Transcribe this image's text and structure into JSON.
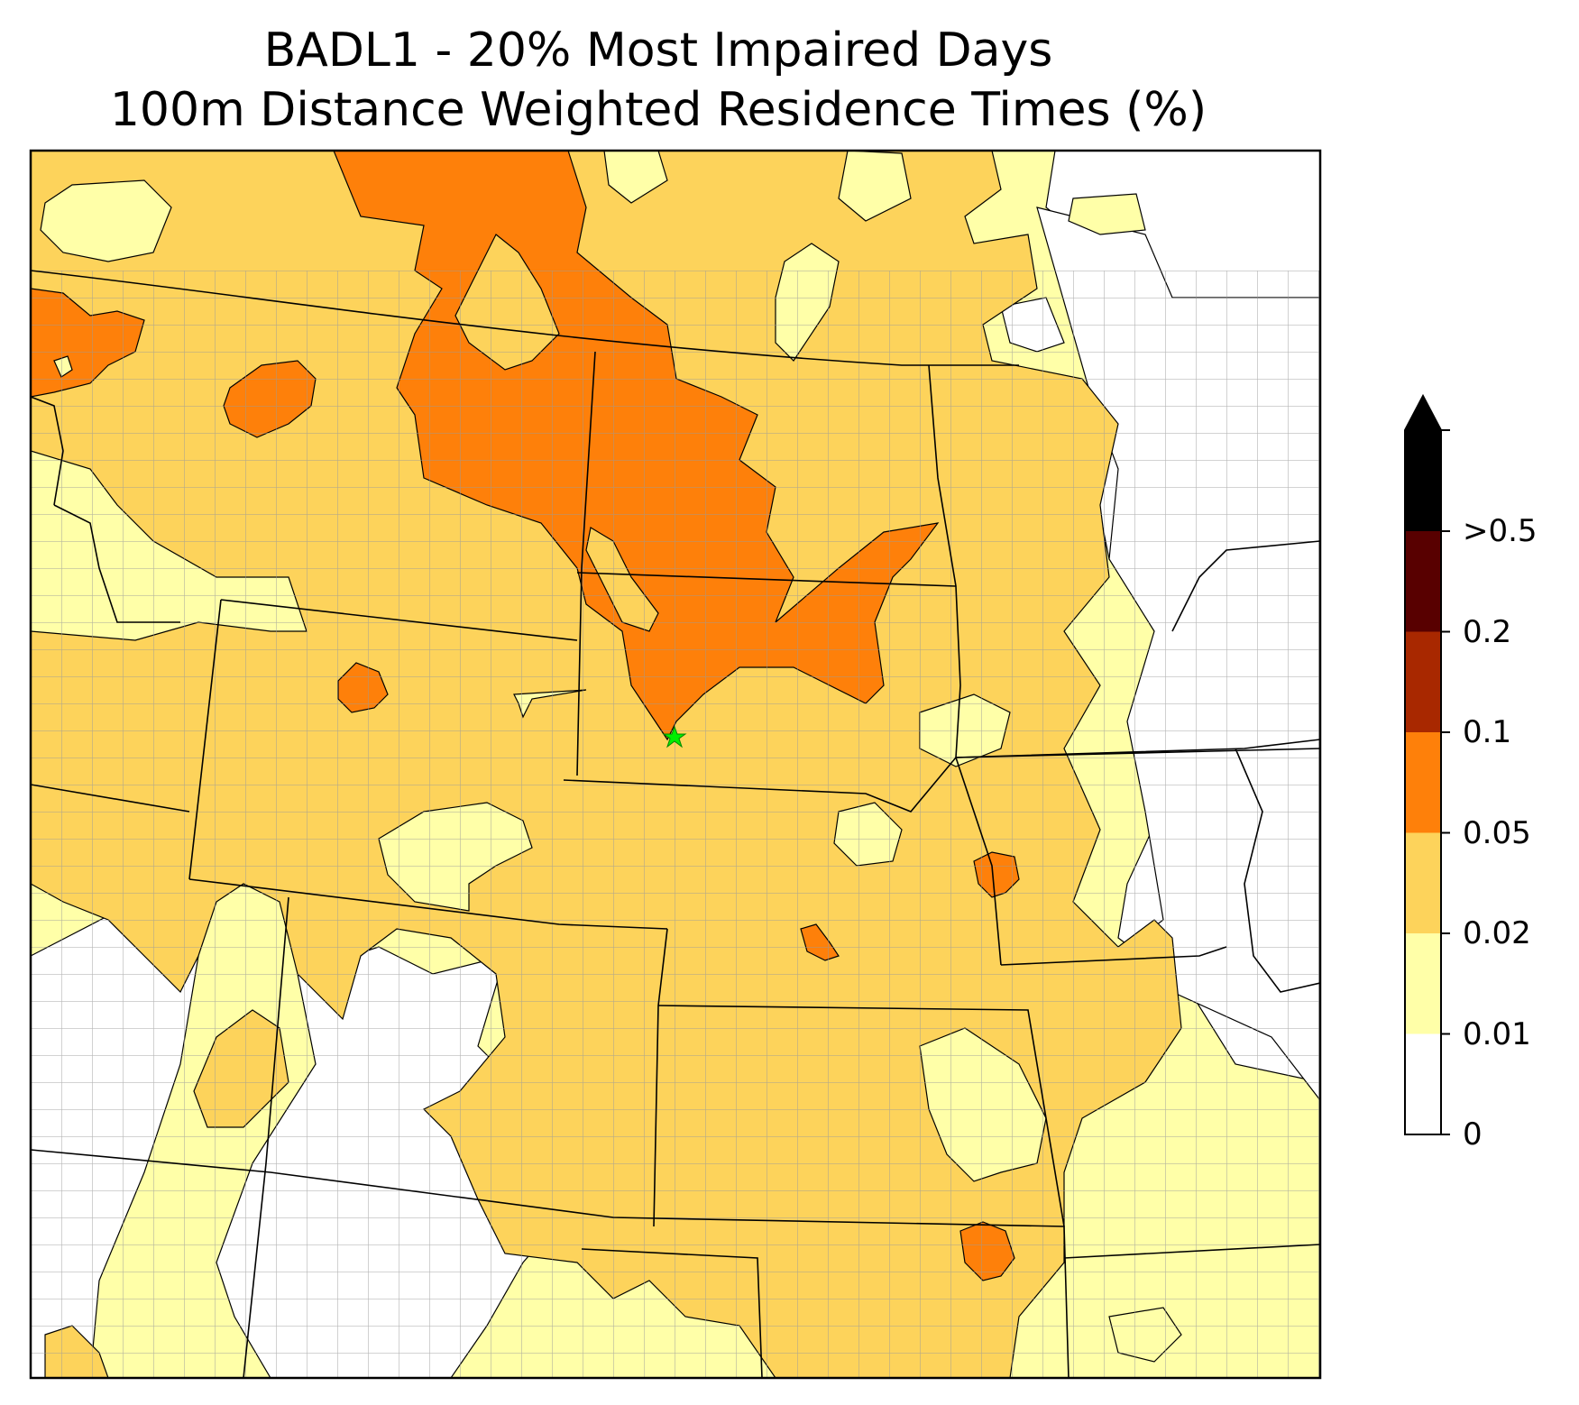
{
  "title": {
    "line1": "BADL1 - 20% Most Impaired Days",
    "line2": "100m Distance Weighted Residence Times (%)"
  },
  "colorbar": {
    "extend": "max",
    "ticks": [
      "0",
      "0.01",
      "0.02",
      "0.05",
      "0.1",
      "0.2",
      ">0.5"
    ],
    "bins": [
      {
        "range": "0 - 0.01",
        "color": "#ffffff"
      },
      {
        "range": "0.01 - 0.02",
        "color": "#ffffa8"
      },
      {
        "range": "0.02 - 0.05",
        "color": "#fdd35b"
      },
      {
        "range": "0.05 - 0.1",
        "color": "#fe800a"
      },
      {
        "range": "0.1 - 0.2",
        "color": "#a82800"
      },
      {
        "range": "0.2 - 0.5",
        "color": "#580000"
      },
      {
        "range": ">0.5",
        "color": "#000000"
      }
    ]
  },
  "map": {
    "site_marker": {
      "name": "BADL1",
      "symbol": "star",
      "color": "#00ee00"
    },
    "colors": {
      "county_lines": "#9a9a9a",
      "state_lines": "#000000",
      "contour_lines": "#000000"
    }
  }
}
